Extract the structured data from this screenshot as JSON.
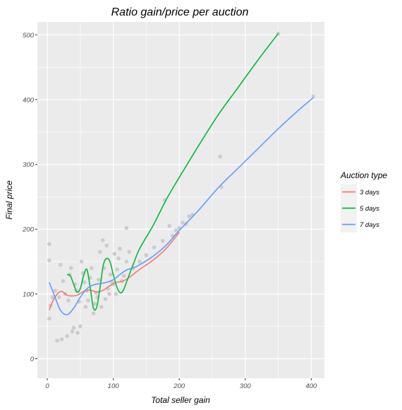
{
  "chart_data": {
    "type": "scatter",
    "title": "Ratio gain/price per auction",
    "xlabel": "Total seller gain",
    "ylabel": "Final price",
    "xlim": [
      -15,
      420
    ],
    "ylim": [
      -30,
      520
    ],
    "x_ticks": [
      "0",
      "100",
      "200",
      "300",
      "400"
    ],
    "x_tick_values": [
      0,
      100,
      200,
      300,
      400
    ],
    "y_ticks": [
      "0",
      "100",
      "200",
      "300",
      "400",
      "500"
    ],
    "y_tick_values": [
      0,
      100,
      200,
      300,
      400,
      500
    ],
    "grid": true,
    "legend": {
      "title": "Auction type",
      "position": "right"
    },
    "background_color": "#ebebeb",
    "grid_color": "#ffffff",
    "point_color": "#cccccc",
    "points": [
      {
        "x": 3,
        "y": 177
      },
      {
        "x": 3,
        "y": 152
      },
      {
        "x": 3,
        "y": 62
      },
      {
        "x": 5,
        "y": 82
      },
      {
        "x": 8,
        "y": 95
      },
      {
        "x": 12,
        "y": 105
      },
      {
        "x": 15,
        "y": 28
      },
      {
        "x": 18,
        "y": 95
      },
      {
        "x": 20,
        "y": 145
      },
      {
        "x": 22,
        "y": 30
      },
      {
        "x": 24,
        "y": 120
      },
      {
        "x": 27,
        "y": 100
      },
      {
        "x": 30,
        "y": 35
      },
      {
        "x": 32,
        "y": 90
      },
      {
        "x": 34,
        "y": 130
      },
      {
        "x": 36,
        "y": 140
      },
      {
        "x": 38,
        "y": 42
      },
      {
        "x": 40,
        "y": 48
      },
      {
        "x": 42,
        "y": 115
      },
      {
        "x": 44,
        "y": 105
      },
      {
        "x": 46,
        "y": 40
      },
      {
        "x": 48,
        "y": 88
      },
      {
        "x": 50,
        "y": 50
      },
      {
        "x": 52,
        "y": 150
      },
      {
        "x": 54,
        "y": 132
      },
      {
        "x": 56,
        "y": 118
      },
      {
        "x": 58,
        "y": 80
      },
      {
        "x": 60,
        "y": 105
      },
      {
        "x": 62,
        "y": 90
      },
      {
        "x": 65,
        "y": 125
      },
      {
        "x": 67,
        "y": 140
      },
      {
        "x": 70,
        "y": 70
      },
      {
        "x": 72,
        "y": 85
      },
      {
        "x": 74,
        "y": 102
      },
      {
        "x": 76,
        "y": 95
      },
      {
        "x": 78,
        "y": 122
      },
      {
        "x": 80,
        "y": 165
      },
      {
        "x": 82,
        "y": 80
      },
      {
        "x": 84,
        "y": 183
      },
      {
        "x": 86,
        "y": 140
      },
      {
        "x": 88,
        "y": 92
      },
      {
        "x": 90,
        "y": 175
      },
      {
        "x": 92,
        "y": 108
      },
      {
        "x": 94,
        "y": 100
      },
      {
        "x": 96,
        "y": 130
      },
      {
        "x": 98,
        "y": 118
      },
      {
        "x": 100,
        "y": 115
      },
      {
        "x": 102,
        "y": 162
      },
      {
        "x": 104,
        "y": 100
      },
      {
        "x": 106,
        "y": 138
      },
      {
        "x": 108,
        "y": 155
      },
      {
        "x": 110,
        "y": 170
      },
      {
        "x": 113,
        "y": 120
      },
      {
        "x": 116,
        "y": 128
      },
      {
        "x": 120,
        "y": 150
      },
      {
        "x": 124,
        "y": 165
      },
      {
        "x": 120,
        "y": 202
      },
      {
        "x": 130,
        "y": 140
      },
      {
        "x": 140,
        "y": 150
      },
      {
        "x": 150,
        "y": 160
      },
      {
        "x": 162,
        "y": 172
      },
      {
        "x": 175,
        "y": 182
      },
      {
        "x": 178,
        "y": 245
      },
      {
        "x": 185,
        "y": 205
      },
      {
        "x": 190,
        "y": 190
      },
      {
        "x": 195,
        "y": 198
      },
      {
        "x": 200,
        "y": 202
      },
      {
        "x": 205,
        "y": 210
      },
      {
        "x": 210,
        "y": 208
      },
      {
        "x": 215,
        "y": 220
      },
      {
        "x": 220,
        "y": 222
      },
      {
        "x": 262,
        "y": 312
      },
      {
        "x": 264,
        "y": 265
      },
      {
        "x": 350,
        "y": 502
      },
      {
        "x": 403,
        "y": 405
      }
    ],
    "series": [
      {
        "name": "3 days",
        "color": "#f8766d",
        "x": [
          3,
          8,
          15,
          22,
          30,
          38,
          45,
          55,
          65,
          75,
          85,
          95,
          105,
          115,
          125,
          140,
          160,
          180,
          200
        ],
        "y": [
          75,
          88,
          100,
          104,
          98,
          97,
          98,
          104,
          106,
          103,
          106,
          113,
          118,
          120,
          126,
          138,
          152,
          170,
          195
        ]
      },
      {
        "name": "5 days",
        "color": "#00ba38",
        "x": [
          30,
          35,
          40,
          45,
          50,
          55,
          60,
          65,
          70,
          75,
          80,
          85,
          90,
          95,
          100,
          105,
          110,
          115,
          120,
          130,
          140,
          160,
          180,
          200,
          230,
          260,
          290,
          320,
          350
        ],
        "y": [
          130,
          128,
          115,
          103,
          108,
          128,
          138,
          110,
          78,
          80,
          110,
          145,
          155,
          150,
          130,
          112,
          102,
          105,
          118,
          145,
          170,
          205,
          245,
          280,
          330,
          378,
          420,
          462,
          502
        ]
      },
      {
        "name": "7 days",
        "color": "#619cff",
        "x": [
          3,
          10,
          20,
          30,
          40,
          50,
          60,
          70,
          80,
          90,
          100,
          110,
          120,
          130,
          140,
          160,
          180,
          200,
          230,
          260,
          290,
          320,
          350,
          380,
          403
        ],
        "y": [
          118,
          100,
          75,
          68,
          78,
          95,
          108,
          114,
          116,
          118,
          122,
          130,
          137,
          140,
          145,
          158,
          175,
          198,
          230,
          265,
          295,
          325,
          355,
          383,
          403
        ]
      }
    ]
  }
}
